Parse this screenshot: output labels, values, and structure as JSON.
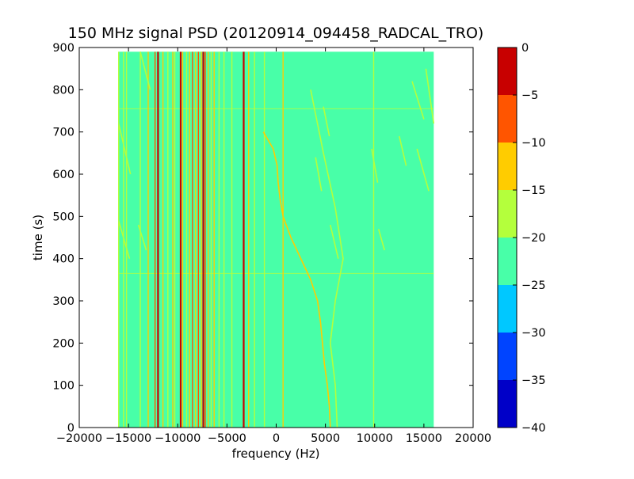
{
  "chart_data": {
    "type": "heatmap",
    "title": "150 MHz signal PSD (20120914_094458_RADCAL_TRO)",
    "xlabel": "frequency (Hz)",
    "ylabel": "time (s)",
    "xlim": [
      -20000,
      20000
    ],
    "ylim": [
      0,
      900
    ],
    "xticks": [
      -20000,
      -15000,
      -10000,
      -5000,
      0,
      5000,
      10000,
      15000,
      20000
    ],
    "xtick_labels": [
      "−20000",
      "−15000",
      "−10000",
      "−5000",
      "0",
      "5000",
      "10000",
      "15000",
      "20000"
    ],
    "yticks": [
      0,
      100,
      200,
      300,
      400,
      500,
      600,
      700,
      800,
      900
    ],
    "ytick_labels": [
      "0",
      "100",
      "200",
      "300",
      "400",
      "500",
      "600",
      "700",
      "800",
      "900"
    ],
    "data_extent": {
      "x": [
        -16000,
        16000
      ],
      "y": [
        0,
        890
      ]
    },
    "background_level": -22.5,
    "colorbar": {
      "levels": [
        -40,
        -35,
        -30,
        -25,
        -20,
        -15,
        -10,
        -5,
        0
      ],
      "tick_labels": [
        "−40",
        "−35",
        "−30",
        "−25",
        "−20",
        "−15",
        "−10",
        "−5",
        "0"
      ],
      "colors": [
        "#0000c8",
        "#0044ff",
        "#00c8ff",
        "#48ffa8",
        "#b4ff3c",
        "#ffcc00",
        "#ff5500",
        "#c80000"
      ]
    },
    "vertical_lines": [
      {
        "x": -16000,
        "level": -17.5
      },
      {
        "x": -15500,
        "level": -17.5
      },
      {
        "x": -15200,
        "level": -17.5
      },
      {
        "x": -13800,
        "level": -17.5
      },
      {
        "x": -13000,
        "level": -12.5
      },
      {
        "x": -12300,
        "level": -7.5
      },
      {
        "x": -12000,
        "level": -2.5
      },
      {
        "x": -11500,
        "level": -12.5
      },
      {
        "x": -11000,
        "level": -17.5
      },
      {
        "x": -10500,
        "level": -12.5
      },
      {
        "x": -10300,
        "level": -17.5
      },
      {
        "x": -9700,
        "level": -2.5
      },
      {
        "x": -9500,
        "level": -12.5
      },
      {
        "x": -9100,
        "level": -17.5
      },
      {
        "x": -8800,
        "level": -12.5
      },
      {
        "x": -8500,
        "level": -7.5
      },
      {
        "x": -8200,
        "level": -12.5
      },
      {
        "x": -7900,
        "level": -7.5
      },
      {
        "x": -7600,
        "level": -12.5
      },
      {
        "x": -7400,
        "level": -2.5
      },
      {
        "x": -7200,
        "level": -7.5
      },
      {
        "x": -6900,
        "level": -12.5
      },
      {
        "x": -6600,
        "level": -17.5
      },
      {
        "x": -6300,
        "level": -12.5
      },
      {
        "x": -5800,
        "level": -17.5
      },
      {
        "x": -5300,
        "level": -17.5
      },
      {
        "x": -4500,
        "level": -17.5
      },
      {
        "x": -3300,
        "level": -2.5
      },
      {
        "x": -2800,
        "level": -12.5
      },
      {
        "x": -2200,
        "level": -17.5
      },
      {
        "x": -1200,
        "level": -17.5
      },
      {
        "x": 700,
        "level": -12.5
      },
      {
        "x": 9900,
        "level": -17.5
      }
    ],
    "horizontal_lines": [
      {
        "y": 755,
        "level": -17.5
      },
      {
        "y": 365,
        "level": -17.5
      }
    ],
    "drift_traces": [
      {
        "level": -12.5,
        "points": [
          [
            -1300,
            700
          ],
          [
            -300,
            660
          ],
          [
            100,
            620
          ],
          [
            200,
            580
          ],
          [
            400,
            540
          ],
          [
            700,
            500
          ],
          [
            1500,
            450
          ],
          [
            2500,
            400
          ],
          [
            3500,
            350
          ],
          [
            4200,
            300
          ],
          [
            4500,
            250
          ],
          [
            4700,
            200
          ],
          [
            4900,
            150
          ],
          [
            5200,
            100
          ],
          [
            5400,
            50
          ],
          [
            5500,
            0
          ]
        ]
      },
      {
        "level": -17.5,
        "points": [
          [
            3500,
            800
          ],
          [
            4800,
            650
          ],
          [
            6000,
            520
          ],
          [
            6800,
            400
          ],
          [
            6000,
            300
          ],
          [
            5500,
            200
          ],
          [
            6000,
            100
          ],
          [
            6200,
            0
          ]
        ]
      },
      {
        "level": -17.5,
        "points": [
          [
            -16000,
            720
          ],
          [
            -14800,
            600
          ]
        ]
      },
      {
        "level": -17.5,
        "points": [
          [
            -16000,
            490
          ],
          [
            -14900,
            400
          ]
        ]
      },
      {
        "level": -17.5,
        "points": [
          [
            -13800,
            890
          ],
          [
            -12800,
            800
          ]
        ]
      },
      {
        "level": -17.5,
        "points": [
          [
            -14000,
            480
          ],
          [
            -13200,
            420
          ]
        ]
      },
      {
        "level": -17.5,
        "points": [
          [
            4000,
            640
          ],
          [
            4600,
            560
          ]
        ]
      },
      {
        "level": -17.5,
        "points": [
          [
            4800,
            760
          ],
          [
            5400,
            690
          ]
        ]
      },
      {
        "level": -17.5,
        "points": [
          [
            5500,
            480
          ],
          [
            6300,
            400
          ]
        ]
      },
      {
        "level": -17.5,
        "points": [
          [
            9700,
            660
          ],
          [
            10300,
            580
          ]
        ]
      },
      {
        "level": -17.5,
        "points": [
          [
            10400,
            470
          ],
          [
            11000,
            420
          ]
        ]
      },
      {
        "level": -17.5,
        "points": [
          [
            12500,
            690
          ],
          [
            13200,
            620
          ]
        ]
      },
      {
        "level": -17.5,
        "points": [
          [
            13800,
            820
          ],
          [
            15000,
            730
          ]
        ]
      },
      {
        "level": -17.5,
        "points": [
          [
            14300,
            660
          ],
          [
            15500,
            560
          ]
        ]
      },
      {
        "level": -17.5,
        "points": [
          [
            15200,
            850
          ],
          [
            16000,
            720
          ]
        ]
      }
    ]
  }
}
